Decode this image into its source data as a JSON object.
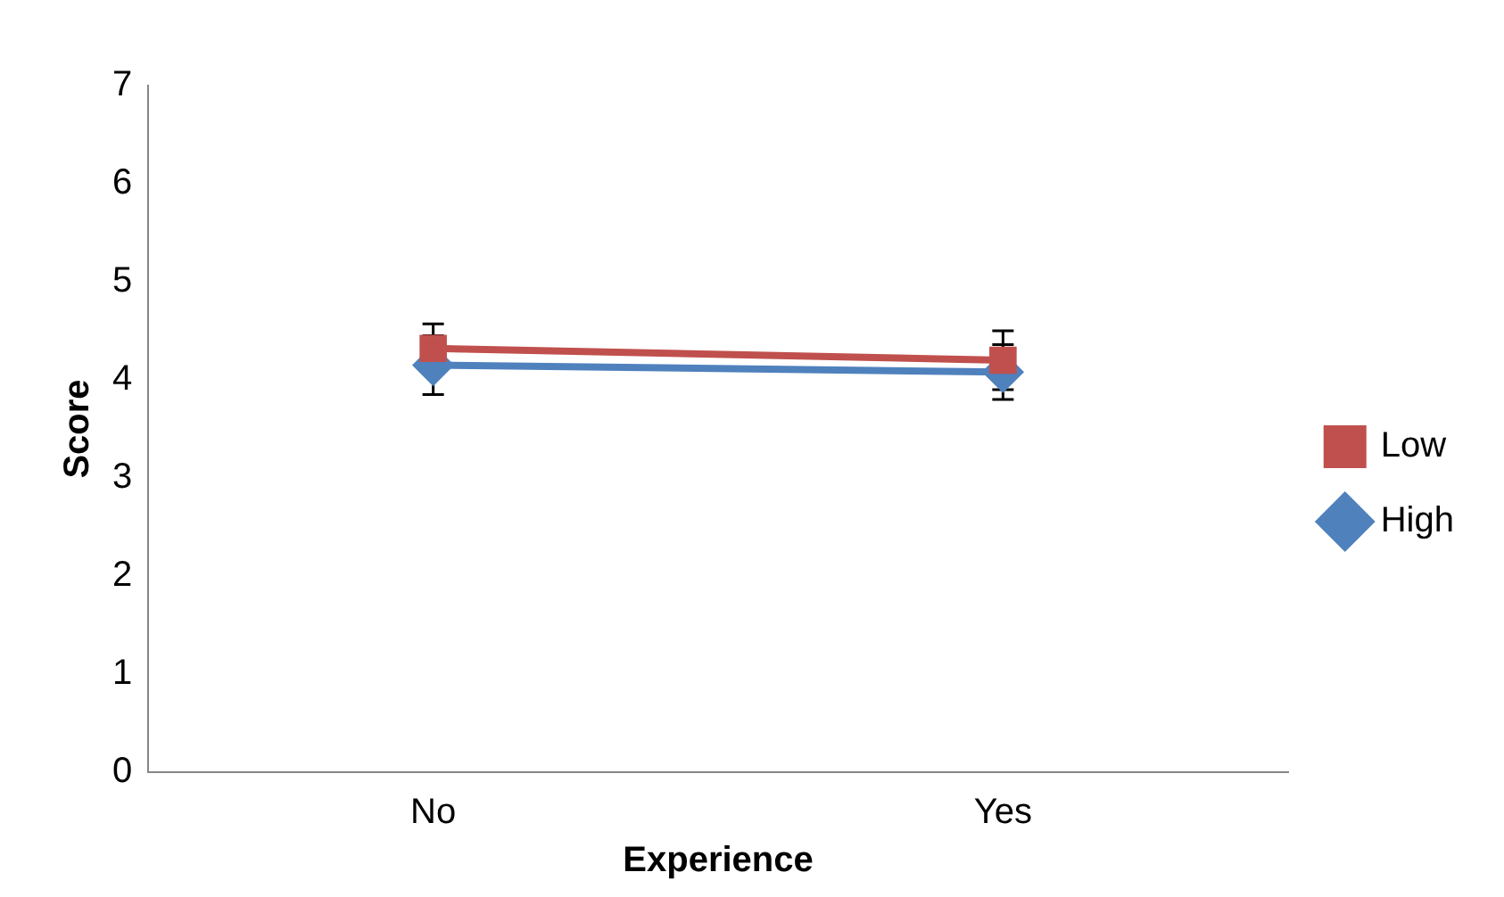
{
  "chart_data": {
    "type": "line",
    "xlabel": "Experience",
    "ylabel": "Score",
    "categories": [
      "No",
      "Yes"
    ],
    "series": [
      {
        "name": "High",
        "color": "#4f81bd",
        "marker": "diamond",
        "values": [
          4.15,
          4.08
        ],
        "errors": [
          0.3,
          0.28
        ]
      },
      {
        "name": "Low",
        "color": "#c0504d",
        "marker": "square",
        "values": [
          4.32,
          4.2
        ],
        "errors": [
          0.25,
          0.3
        ]
      }
    ],
    "ylim": [
      0,
      7
    ],
    "yticks": [
      0,
      1,
      2,
      3,
      4,
      5,
      6,
      7
    ],
    "grid": false,
    "legend": "right"
  }
}
